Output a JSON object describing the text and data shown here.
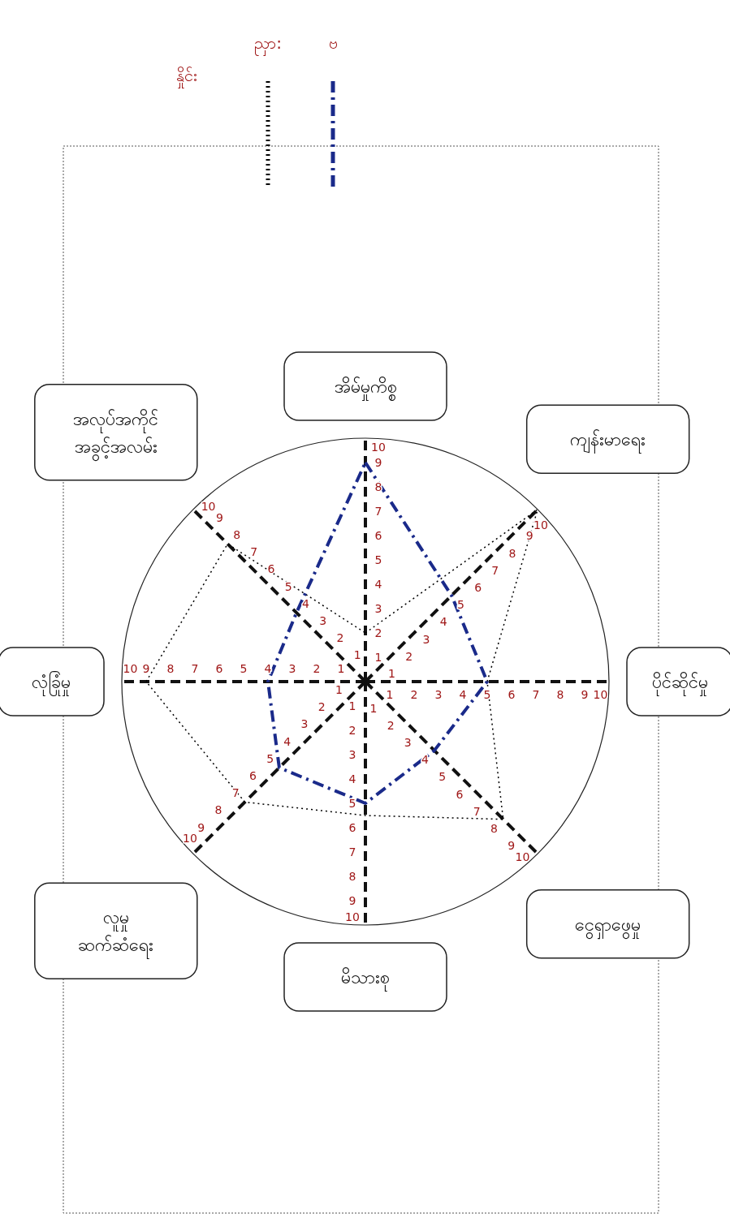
{
  "chart_data": {
    "type": "radar",
    "legend_title": "နှိုင်း",
    "legend": "top",
    "grid": true,
    "marker": "none",
    "categories": [
      "အိမ်မှုကိစ္စ",
      "ကျန်းမာရေး",
      "ပိုင်ဆိုင်မှု",
      "ငွေရှာဖွေမှု",
      "မိသားစု",
      "လူမှု ဆက်ဆံရေး",
      "လုံခြုံမှု",
      "အလုပ်အကိုင် အခွင့်အလမ်း"
    ],
    "ylim": [
      0,
      10
    ],
    "yticks": [
      1,
      2,
      3,
      4,
      5,
      6,
      7,
      8,
      9,
      10
    ],
    "series": [
      {
        "name": "ညှာ:",
        "color": "#000000",
        "line_style": "dotted",
        "values": [
          2,
          10,
          5,
          8,
          5.5,
          7,
          9,
          8
        ]
      },
      {
        "name": "ဗ",
        "color": "#1a2a8a",
        "line_style": "dashed",
        "values": [
          9,
          5,
          5,
          4,
          5,
          5,
          4,
          4
        ]
      }
    ],
    "annotations": [
      "1",
      "2",
      "3",
      "4",
      "5",
      "6",
      "7",
      "8",
      "9",
      "10",
      "1",
      "2",
      "3",
      "4",
      "5",
      "6",
      "7",
      "8",
      "9",
      "10",
      "1",
      "2",
      "3",
      "4",
      "5",
      "6",
      "7",
      "8",
      "9",
      "10",
      "1",
      "2",
      "3",
      "4",
      "5",
      "6",
      "7",
      "8",
      "9",
      "10",
      "1",
      "2",
      "3",
      "4",
      "5",
      "6",
      "7",
      "8",
      "9",
      "10",
      "1",
      "2",
      "3",
      "4",
      "5",
      "6",
      "7",
      "8",
      "9",
      "10",
      "1",
      "2",
      "3",
      "4",
      "5",
      "6",
      "7",
      "8",
      "9",
      "10"
    ]
  }
}
